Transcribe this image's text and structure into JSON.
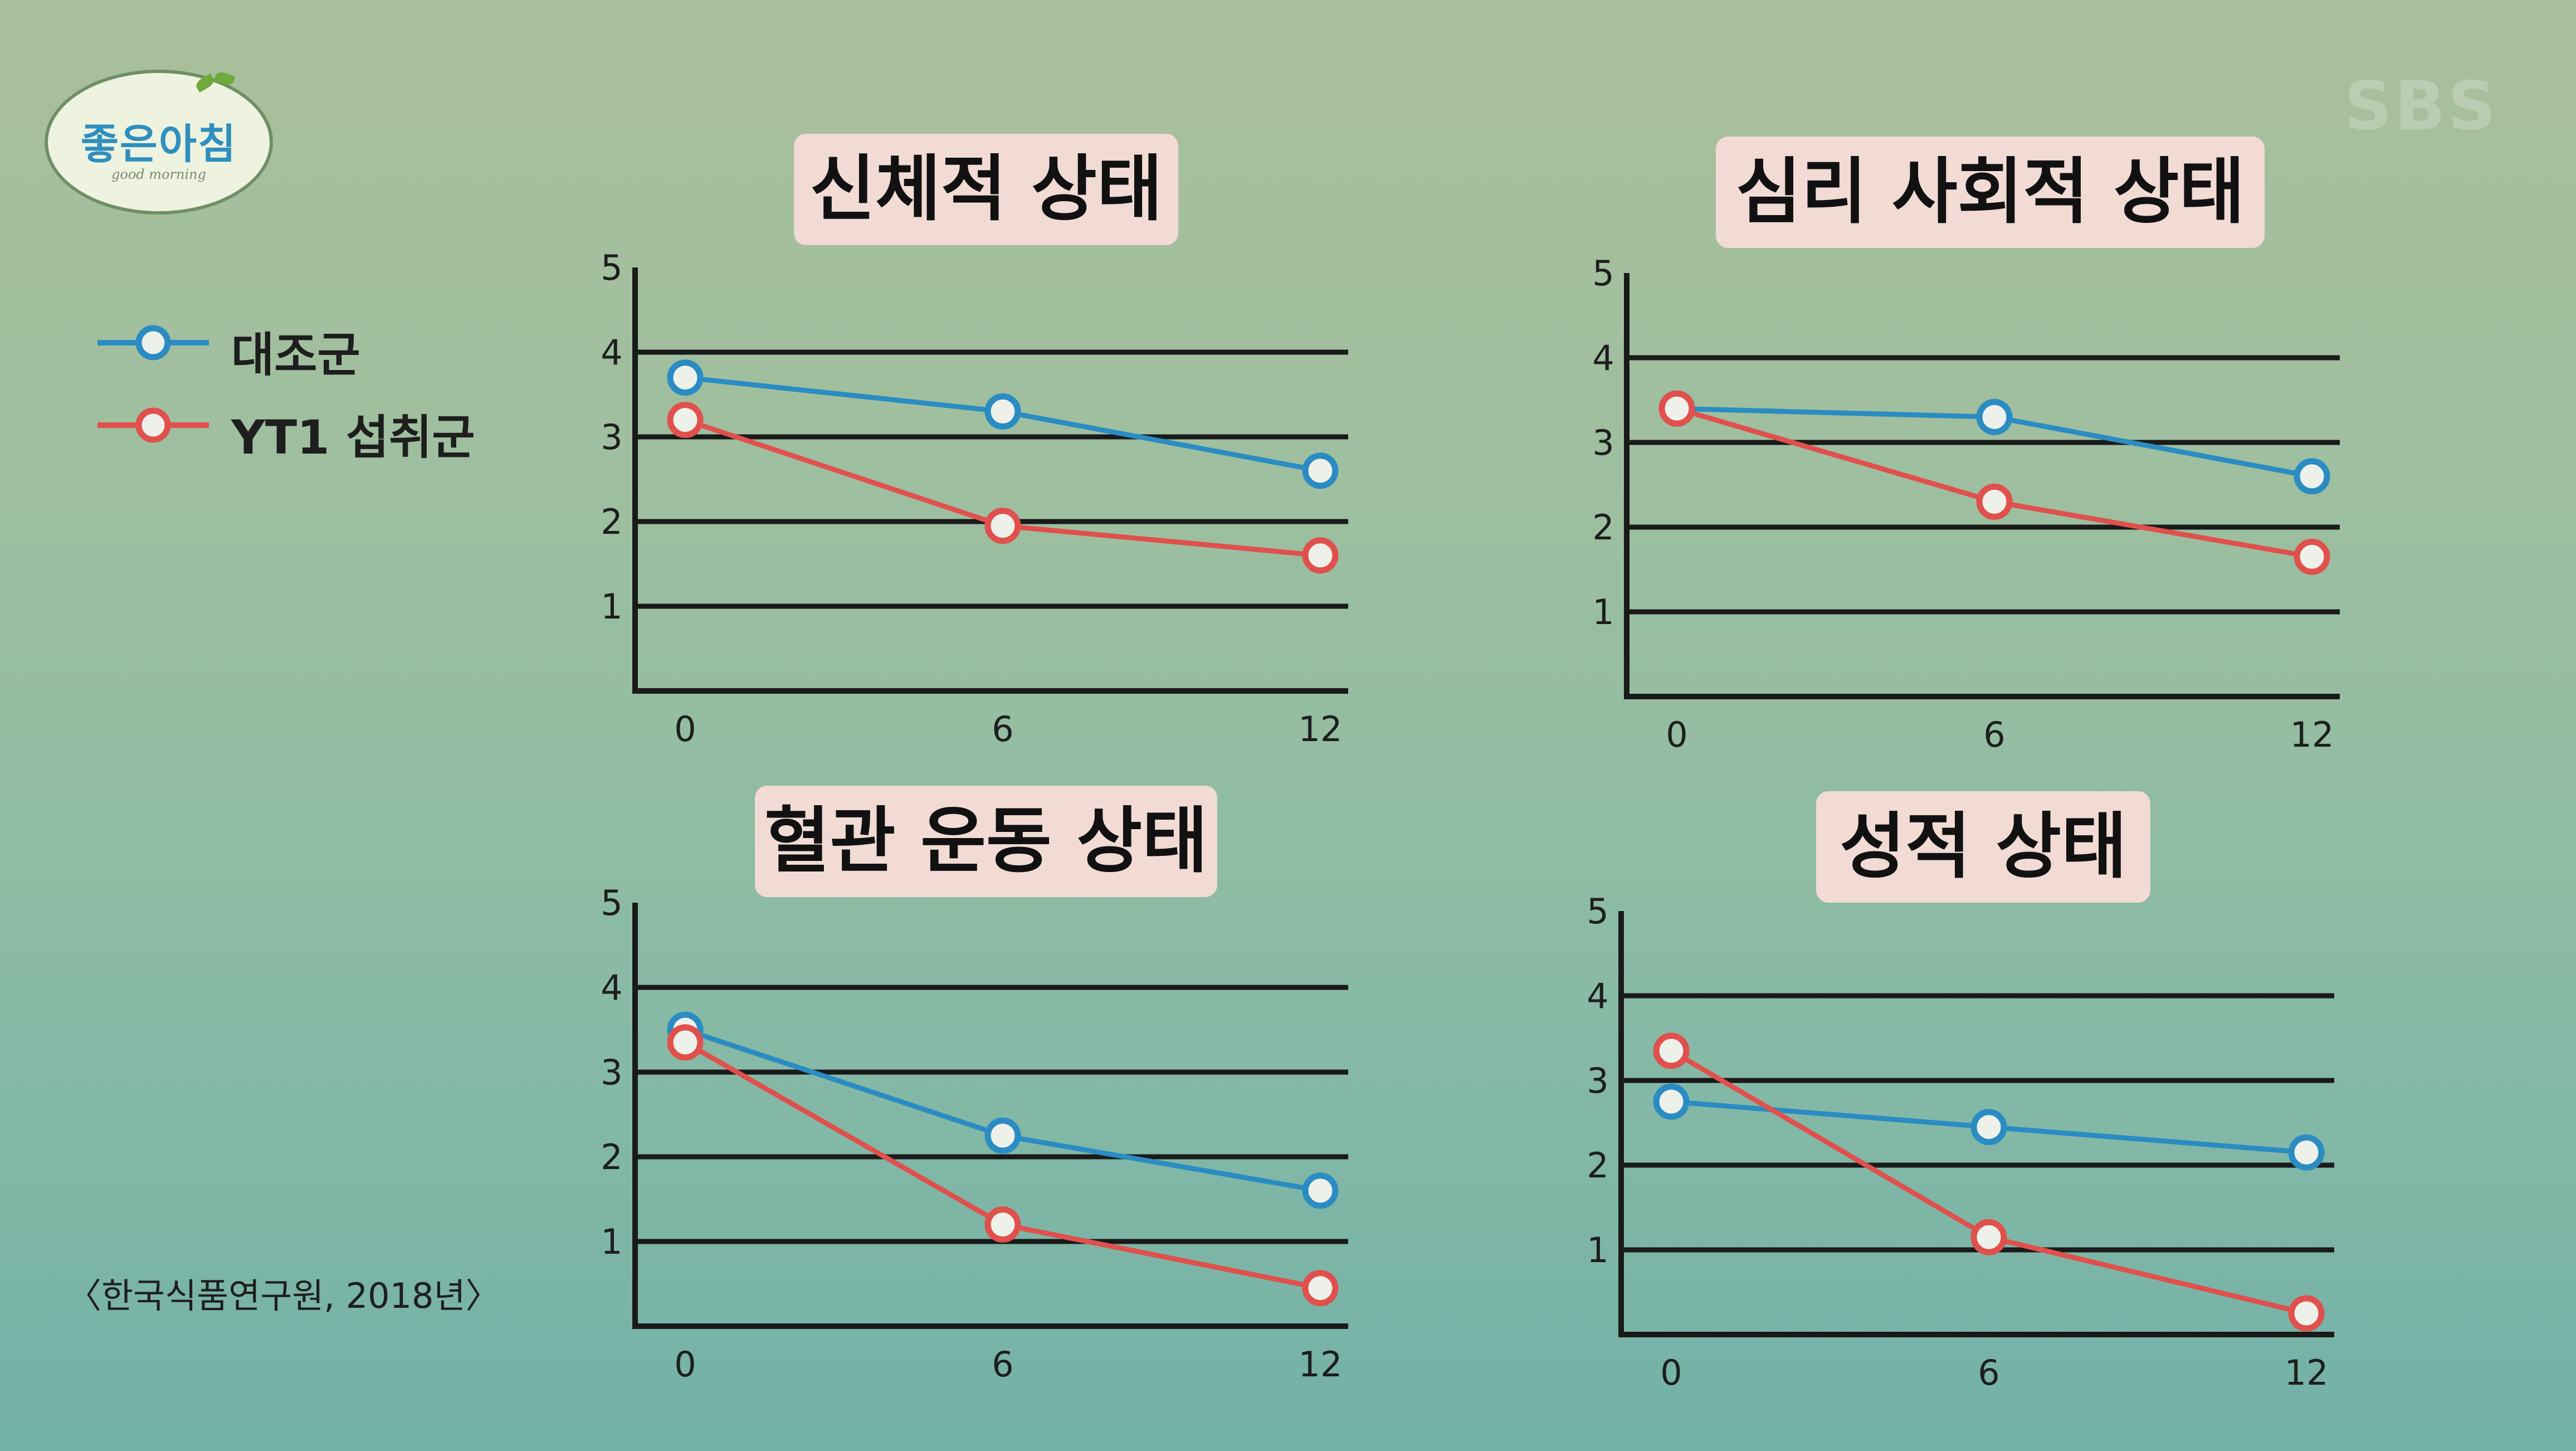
{
  "branding": {
    "logo_text": "좋은아침",
    "logo_subtext": "good morning",
    "watermark": "SBS"
  },
  "legend": {
    "items": [
      {
        "label": "대조군",
        "color": "#2a8cc2"
      },
      {
        "label": "YT1 섭취군",
        "color": "#e0504c"
      }
    ]
  },
  "source": "〈한국식품연구원, 2018년〉",
  "chart_data": [
    {
      "type": "line",
      "title": "신체적 상태",
      "x": [
        0,
        6,
        12
      ],
      "ylim": [
        0,
        5
      ],
      "yticks": [
        1,
        2,
        3,
        4,
        5
      ],
      "grid": true,
      "series": [
        {
          "name": "대조군",
          "color": "#2a8cc2",
          "values": [
            3.7,
            3.3,
            2.6
          ]
        },
        {
          "name": "YT1 섭취군",
          "color": "#e0504c",
          "values": [
            3.2,
            1.95,
            1.6
          ]
        }
      ]
    },
    {
      "type": "line",
      "title": "심리 사회적 상태",
      "x": [
        0,
        6,
        12
      ],
      "ylim": [
        0,
        5
      ],
      "yticks": [
        1,
        2,
        3,
        4,
        5
      ],
      "grid": true,
      "series": [
        {
          "name": "대조군",
          "color": "#2a8cc2",
          "values": [
            3.4,
            3.3,
            2.6
          ]
        },
        {
          "name": "YT1 섭취군",
          "color": "#e0504c",
          "values": [
            3.4,
            2.3,
            1.65
          ]
        }
      ]
    },
    {
      "type": "line",
      "title": "혈관 운동 상태",
      "x": [
        0,
        6,
        12
      ],
      "ylim": [
        0,
        5
      ],
      "yticks": [
        1,
        2,
        3,
        4,
        5
      ],
      "grid": true,
      "series": [
        {
          "name": "대조군",
          "color": "#2a8cc2",
          "values": [
            3.5,
            2.25,
            1.6
          ]
        },
        {
          "name": "YT1 섭취군",
          "color": "#e0504c",
          "values": [
            3.35,
            1.2,
            0.45
          ]
        }
      ]
    },
    {
      "type": "line",
      "title": "성적 상태",
      "x": [
        0,
        6,
        12
      ],
      "ylim": [
        0,
        5
      ],
      "yticks": [
        1,
        2,
        3,
        4,
        5
      ],
      "grid": true,
      "series": [
        {
          "name": "대조군",
          "color": "#2a8cc2",
          "values": [
            2.75,
            2.45,
            2.15
          ]
        },
        {
          "name": "YT1 섭취군",
          "color": "#e0504c",
          "values": [
            3.35,
            1.15,
            0.25
          ]
        }
      ]
    }
  ]
}
